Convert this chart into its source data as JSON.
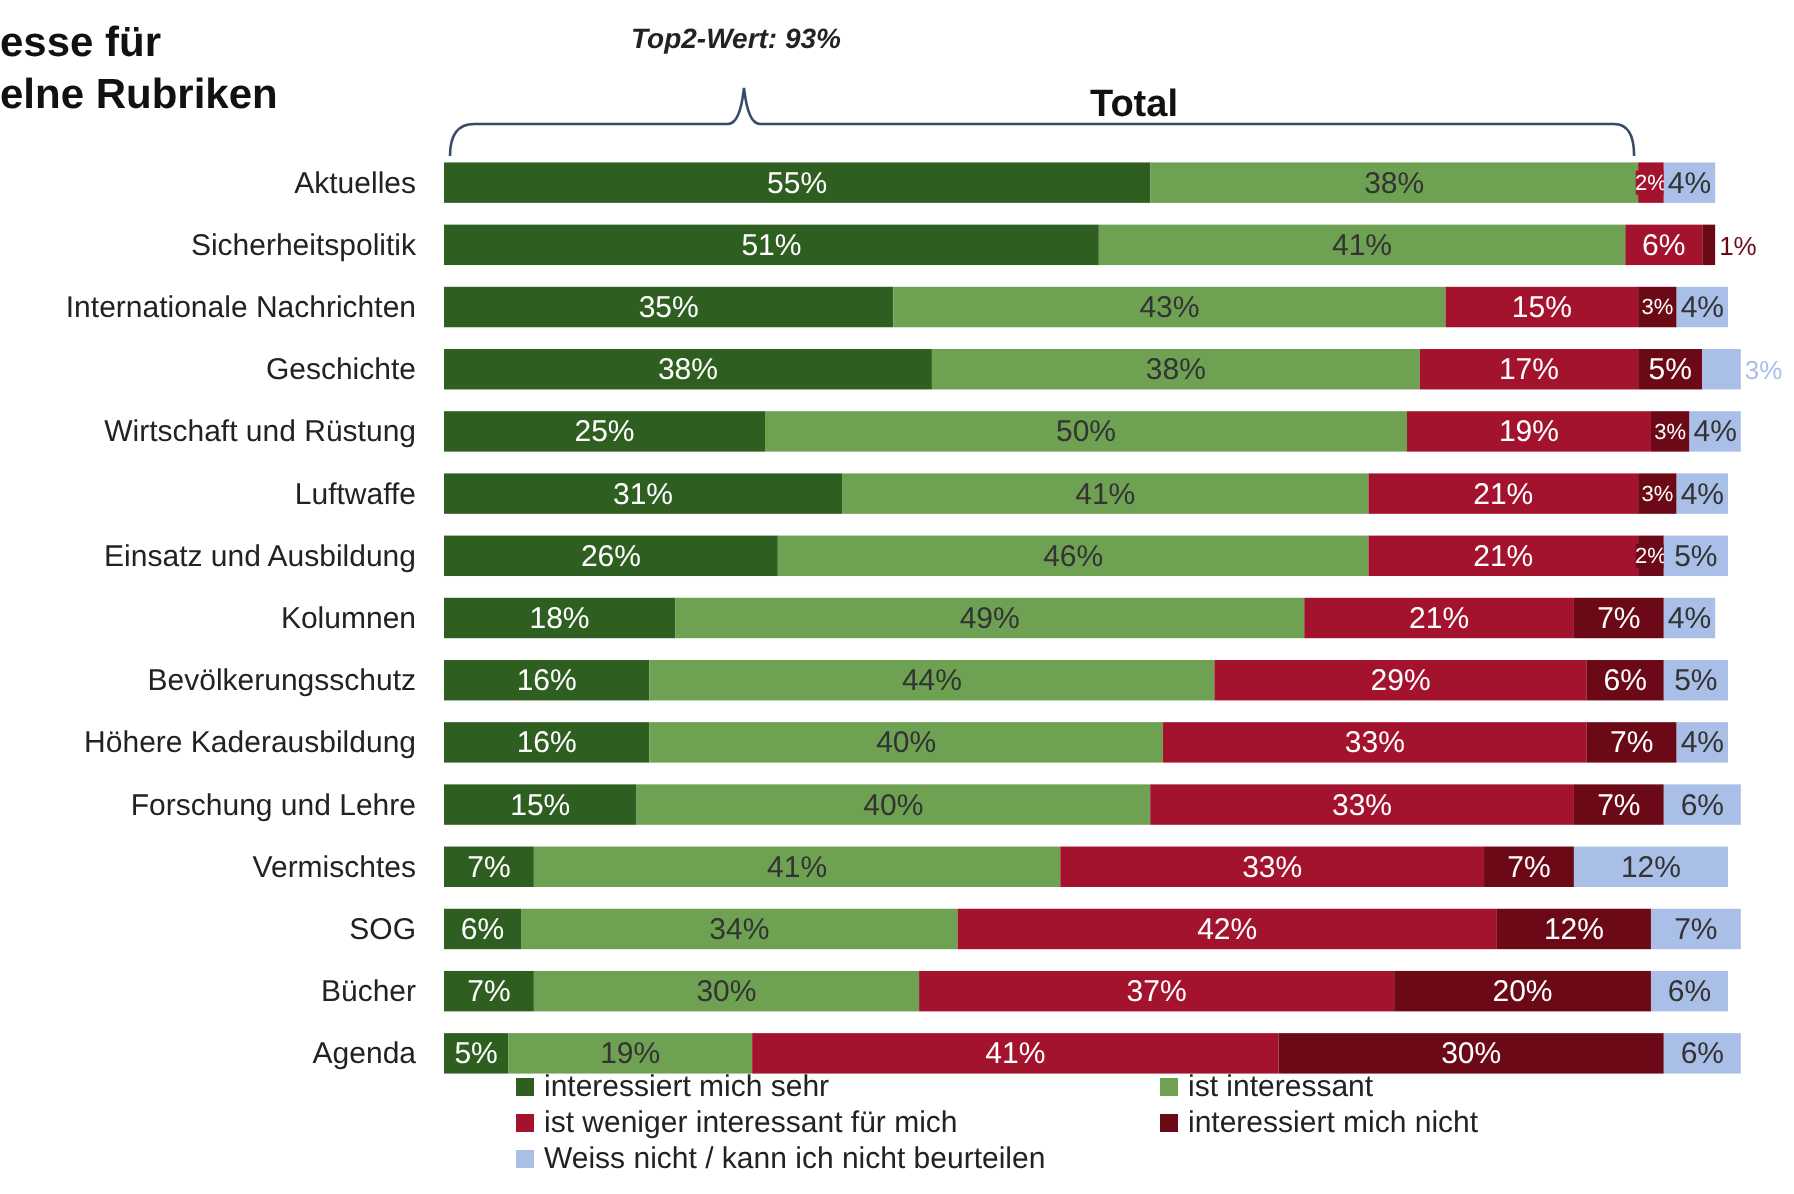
{
  "chart_data": {
    "type": "bar",
    "orientation": "horizontal",
    "stacked": true,
    "title": "esse für\nelne Rubriken",
    "subtitle": "Total",
    "annotations": [
      "Top2-Wert: 93%"
    ],
    "legend": "bottom",
    "categories": [
      "Aktuelles",
      "Sicherheitspolitik",
      "Internationale Nachrichten",
      "Geschichte",
      "Wirtschaft und Rüstung",
      "Luftwaffe",
      "Einsatz und Ausbildung",
      "Kolumnen",
      "Bevölkerungsschutz",
      "Höhere Kaderausbildung",
      "Forschung und Lehre",
      "Vermischtes",
      "SOG",
      "Bücher",
      "Agenda"
    ],
    "series": [
      {
        "name": "interessiert mich sehr",
        "color": "#2f5f20",
        "values": [
          55,
          51,
          35,
          38,
          25,
          31,
          26,
          18,
          16,
          16,
          15,
          7,
          6,
          7,
          5
        ],
        "value_labels": [
          "55%",
          "51%",
          "35%",
          "38%",
          "25%",
          "31%",
          "26%",
          "18%",
          "16%",
          "16%",
          "15%",
          "7%",
          "6%",
          "7%",
          "5%"
        ]
      },
      {
        "name": "ist interessant",
        "color": "#6fa152",
        "values": [
          38,
          41,
          43,
          38,
          50,
          41,
          46,
          49,
          44,
          40,
          40,
          41,
          34,
          30,
          19
        ],
        "value_labels": [
          "38%",
          "41%",
          "43%",
          "38%",
          "50%",
          "41%",
          "46%",
          "49%",
          "44%",
          "40%",
          "40%",
          "41%",
          "34%",
          "30%",
          "19%"
        ]
      },
      {
        "name": "ist weniger interessant für mich",
        "color": "#a3132e",
        "values": [
          2,
          6,
          15,
          17,
          19,
          21,
          21,
          21,
          29,
          33,
          33,
          33,
          42,
          37,
          41
        ],
        "value_labels": [
          "2%",
          "6%",
          "15%",
          "17%",
          "19%",
          "21%",
          "21%",
          "21%",
          "29%",
          "33%",
          "33%",
          "33%",
          "42%",
          "37%",
          "41%"
        ]
      },
      {
        "name": "interessiert mich nicht",
        "color": "#6b0a16",
        "values": [
          null,
          1,
          3,
          5,
          3,
          3,
          2,
          7,
          6,
          7,
          7,
          7,
          12,
          20,
          30
        ],
        "value_labels": [
          null,
          "1%",
          "3%",
          "5%",
          "3%",
          "3%",
          "2%",
          "7%",
          "6%",
          "7%",
          "7%",
          "7%",
          "12%",
          "20%",
          "30%"
        ]
      },
      {
        "name": "Weiss nicht / kann ich nicht beurteilen",
        "color": "#a9bfe8",
        "values": [
          4,
          null,
          4,
          3,
          4,
          4,
          5,
          4,
          5,
          4,
          6,
          12,
          7,
          6,
          6
        ],
        "value_labels": [
          "4%",
          null,
          "4%",
          "3%",
          "4%",
          "4%",
          "5%",
          "4%",
          "5%",
          "4%",
          "6%",
          "12%",
          "7%",
          "6%",
          "6%"
        ]
      }
    ]
  }
}
